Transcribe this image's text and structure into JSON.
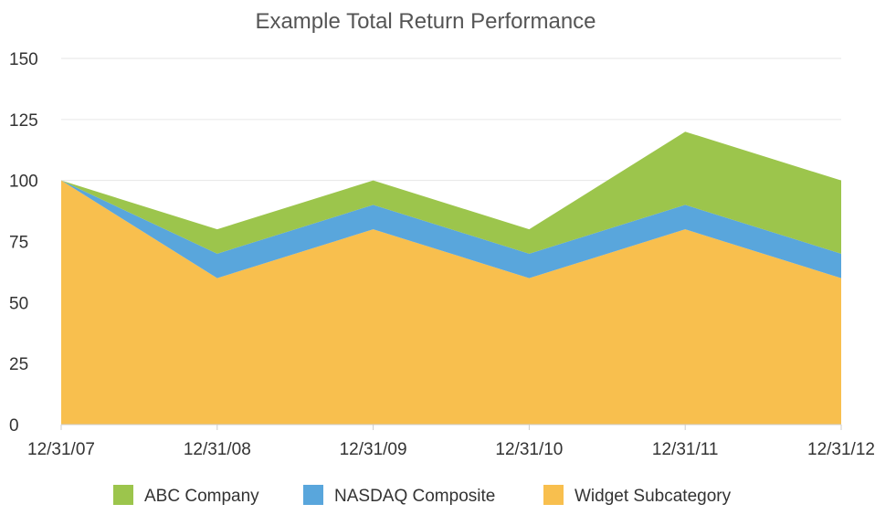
{
  "chart_data": {
    "type": "area",
    "stacked": true,
    "title": "Example Total Return Performance",
    "categories": [
      "12/31/07",
      "12/31/08",
      "12/31/09",
      "12/31/10",
      "12/31/11",
      "12/31/12"
    ],
    "ylim": [
      0,
      150
    ],
    "yticks": [
      0,
      25,
      50,
      75,
      100,
      125,
      150
    ],
    "grid": true,
    "legend_position": "bottom",
    "series": [
      {
        "name": "Widget Subcategory",
        "color": "#f8bf4e",
        "values": [
          100,
          60,
          80,
          60,
          80,
          60
        ]
      },
      {
        "name": "NASDAQ Composite",
        "color": "#59a6dc",
        "values": [
          0,
          10,
          10,
          10,
          10,
          10
        ]
      },
      {
        "name": "ABC Company",
        "color": "#9cc54c",
        "values": [
          0,
          10,
          10,
          10,
          30,
          30
        ]
      }
    ],
    "legend_order": [
      "ABC Company",
      "NASDAQ Composite",
      "Widget Subcategory"
    ]
  }
}
